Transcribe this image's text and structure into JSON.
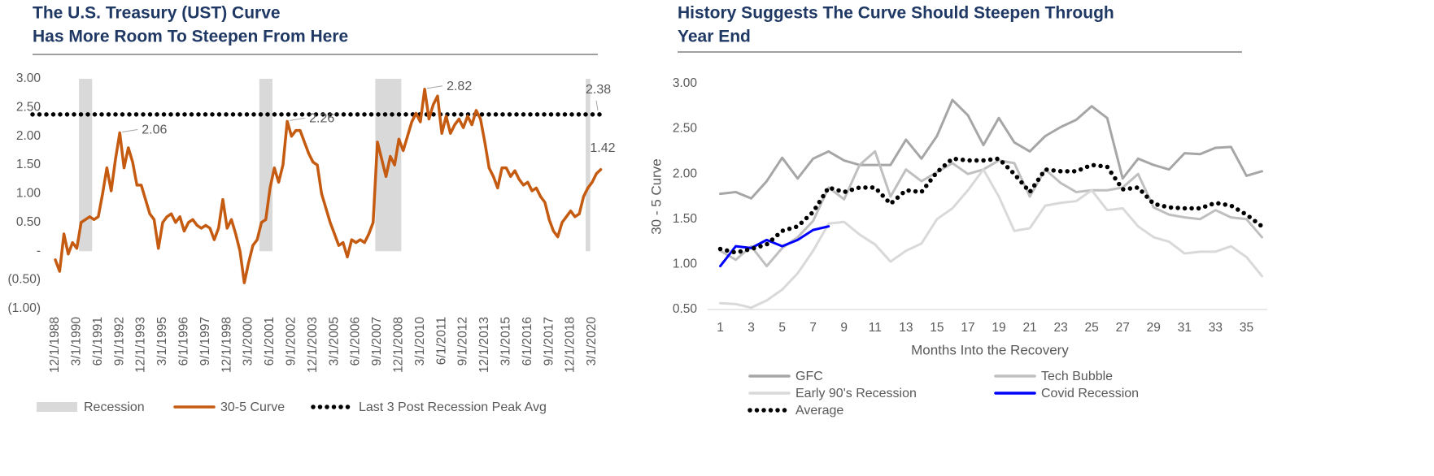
{
  "chart_data": [
    {
      "type": "line",
      "title": [
        "The U.S. Treasury (UST) Curve",
        "Has More Room To Steepen From Here"
      ],
      "categories": [
        "12/1/1988",
        null,
        null,
        null,
        null,
        "3/1/1990",
        null,
        null,
        null,
        null,
        "6/1/1991",
        null,
        null,
        null,
        null,
        "9/1/1992",
        null,
        null,
        null,
        null,
        "12/1/1993",
        null,
        null,
        null,
        null,
        "3/1/1995",
        null,
        null,
        null,
        null,
        "6/1/1996",
        null,
        null,
        null,
        null,
        "9/1/1997",
        null,
        null,
        null,
        null,
        "12/1/1998",
        null,
        null,
        null,
        null,
        "3/1/2000",
        null,
        null,
        null,
        null,
        "6/1/2001",
        null,
        null,
        null,
        null,
        "9/1/2002",
        null,
        null,
        null,
        null,
        "12/1/2003",
        null,
        null,
        null,
        null,
        "3/1/2005",
        null,
        null,
        null,
        null,
        "6/1/2006",
        null,
        null,
        null,
        null,
        "9/1/2007",
        null,
        null,
        null,
        null,
        "12/1/2008",
        null,
        null,
        null,
        null,
        "3/1/2010",
        null,
        null,
        null,
        null,
        "6/1/2011",
        null,
        null,
        null,
        null,
        "9/1/2012",
        null,
        null,
        null,
        null,
        "12/1/2013",
        null,
        null,
        null,
        null,
        "3/1/2015",
        null,
        null,
        null,
        null,
        "6/1/2016",
        null,
        null,
        null,
        null,
        "9/1/2017",
        null,
        null,
        null,
        null,
        "12/1/2018",
        null,
        null,
        null,
        null,
        "3/1/2020",
        null,
        null
      ],
      "series": [
        {
          "name": "Recession",
          "type": "bar",
          "color": "#d9d9d9",
          "values": [
            null,
            null,
            null,
            null,
            null,
            null,
            3,
            3,
            3,
            null,
            null,
            null,
            null,
            null,
            null,
            null,
            null,
            null,
            null,
            null,
            null,
            null,
            null,
            null,
            null,
            null,
            null,
            null,
            null,
            null,
            null,
            null,
            null,
            null,
            null,
            null,
            null,
            null,
            null,
            null,
            null,
            null,
            null,
            null,
            null,
            null,
            null,
            null,
            3,
            3,
            3,
            null,
            null,
            null,
            null,
            null,
            null,
            null,
            null,
            null,
            null,
            null,
            null,
            null,
            null,
            null,
            null,
            null,
            null,
            null,
            null,
            null,
            null,
            null,
            null,
            3,
            3,
            3,
            3,
            3,
            3,
            null,
            null,
            null,
            null,
            null,
            null,
            null,
            null,
            null,
            null,
            null,
            null,
            null,
            null,
            null,
            null,
            null,
            null,
            null,
            null,
            null,
            null,
            null,
            null,
            null,
            null,
            null,
            null,
            null,
            null,
            null,
            null,
            null,
            null,
            null,
            null,
            null,
            null,
            null,
            null,
            null,
            null,
            null,
            3,
            null,
            null,
            null
          ]
        },
        {
          "name": "30-5 Curve",
          "type": "line",
          "color": "#c55a11",
          "values": [
            -0.15,
            -0.35,
            0.3,
            -0.05,
            0.15,
            0.05,
            0.5,
            0.55,
            0.6,
            0.55,
            0.6,
            1.0,
            1.45,
            1.05,
            1.6,
            2.06,
            1.45,
            1.8,
            1.55,
            1.15,
            1.15,
            0.9,
            0.65,
            0.55,
            0.05,
            0.5,
            0.6,
            0.65,
            0.5,
            0.6,
            0.35,
            0.5,
            0.55,
            0.45,
            0.4,
            0.45,
            0.4,
            0.2,
            0.4,
            0.9,
            0.4,
            0.55,
            0.3,
            0.0,
            -0.55,
            -0.2,
            0.1,
            0.2,
            0.5,
            0.55,
            1.1,
            1.45,
            1.2,
            1.5,
            2.26,
            2.0,
            2.1,
            2.1,
            1.9,
            1.7,
            1.55,
            1.5,
            1.0,
            0.75,
            0.5,
            0.3,
            0.1,
            0.15,
            -0.1,
            0.2,
            0.15,
            0.2,
            0.15,
            0.3,
            0.5,
            1.9,
            1.6,
            1.3,
            1.65,
            1.5,
            1.95,
            1.75,
            2.0,
            2.25,
            2.4,
            2.25,
            2.82,
            2.3,
            2.55,
            2.7,
            2.05,
            2.35,
            2.05,
            2.2,
            2.3,
            2.15,
            2.35,
            2.2,
            2.45,
            2.3,
            1.9,
            1.45,
            1.3,
            1.1,
            1.45,
            1.45,
            1.3,
            1.4,
            1.25,
            1.15,
            1.2,
            1.05,
            1.1,
            0.95,
            0.85,
            0.55,
            0.35,
            0.25,
            0.5,
            0.6,
            0.7,
            0.6,
            0.65,
            0.95,
            1.1,
            1.2,
            1.35,
            1.42
          ],
          "value_labels": [
            null,
            null,
            null,
            null,
            null,
            null,
            null,
            null,
            null,
            null,
            null,
            null,
            null,
            null,
            null,
            "2.06",
            null,
            null,
            null,
            null,
            null,
            null,
            null,
            null,
            null,
            null,
            null,
            null,
            null,
            null,
            null,
            null,
            null,
            null,
            null,
            null,
            null,
            null,
            null,
            null,
            null,
            null,
            null,
            null,
            null,
            null,
            null,
            null,
            null,
            null,
            null,
            null,
            null,
            null,
            "2.26",
            null,
            null,
            null,
            null,
            null,
            null,
            null,
            null,
            null,
            null,
            null,
            null,
            null,
            null,
            null,
            null,
            null,
            null,
            null,
            null,
            null,
            null,
            null,
            null,
            null,
            null,
            null,
            null,
            null,
            null,
            null,
            "2.82",
            null,
            null,
            null,
            null,
            null,
            null,
            null,
            null,
            null,
            null,
            null,
            null,
            null,
            null,
            null,
            null,
            null,
            null,
            null,
            null,
            null,
            null,
            null,
            null,
            null,
            null,
            null,
            null,
            null,
            null,
            null,
            null,
            null,
            null,
            null,
            null,
            null,
            null,
            null,
            null,
            "1.42"
          ]
        }
      ],
      "reference_line": {
        "name": "Last 3 Post Recession Peak Avg",
        "value": 2.38,
        "color": "#000000",
        "line_style": "dotted"
      },
      "ylim": [
        -1,
        3
      ],
      "yticks": [
        {
          "value": -1,
          "label": "(1.00)"
        },
        {
          "value": -0.5,
          "label": "(0.50)"
        },
        {
          "value": 0,
          "label": "-"
        },
        {
          "value": 0.5,
          "label": "0.50"
        },
        {
          "value": 1,
          "label": "1.00"
        },
        {
          "value": 1.5,
          "label": "1.50"
        },
        {
          "value": 2,
          "label": "2.00"
        },
        {
          "value": 2.5,
          "label": "2.50"
        },
        {
          "value": 3,
          "label": "3.00"
        }
      ],
      "grid": false,
      "legend": "bottom"
    },
    {
      "type": "line",
      "title": [
        "History Suggests The Curve Should Steepen Through",
        "Year End"
      ],
      "y_label": "30 - 5 Curve",
      "x_label": "Months Into the Recovery",
      "categories": [
        "1",
        null,
        "3",
        null,
        "5",
        null,
        "7",
        null,
        "9",
        null,
        "11",
        null,
        "13",
        null,
        "15",
        null,
        "17",
        null,
        "19",
        null,
        "21",
        null,
        "23",
        null,
        "25",
        null,
        "27",
        null,
        "29",
        null,
        "31",
        null,
        "33",
        null,
        "35",
        null
      ],
      "series": [
        {
          "name": "GFC",
          "color": "#a6a6a6",
          "values": [
            1.78,
            1.8,
            1.73,
            1.92,
            2.18,
            1.95,
            2.17,
            2.25,
            2.15,
            2.1,
            2.1,
            2.1,
            2.38,
            2.17,
            2.42,
            2.82,
            2.65,
            2.32,
            2.62,
            2.35,
            2.25,
            2.42,
            2.52,
            2.6,
            2.75,
            2.62,
            1.95,
            2.17,
            2.1,
            2.05,
            2.23,
            2.22,
            2.29,
            2.3,
            1.98,
            2.03
          ]
        },
        {
          "name": "Tech Bubble",
          "color": "#bfbfbf",
          "values": [
            1.15,
            1.05,
            1.2,
            0.98,
            1.18,
            1.3,
            1.48,
            1.85,
            1.72,
            2.1,
            2.25,
            1.75,
            2.05,
            1.92,
            2.02,
            2.12,
            2.0,
            2.05,
            2.15,
            2.12,
            1.75,
            2.05,
            1.9,
            1.8,
            1.82,
            1.82,
            1.85,
            2.0,
            1.63,
            1.55,
            1.52,
            1.5,
            1.6,
            1.52,
            1.5,
            1.3
          ]
        },
        {
          "name": "Early 90's Recession",
          "color": "#d9d9d9",
          "values": [
            0.57,
            0.56,
            0.52,
            0.6,
            0.72,
            0.9,
            1.15,
            1.45,
            1.47,
            1.33,
            1.22,
            1.03,
            1.15,
            1.23,
            1.5,
            1.62,
            1.82,
            2.05,
            1.75,
            1.37,
            1.4,
            1.65,
            1.68,
            1.7,
            1.82,
            1.6,
            1.62,
            1.42,
            1.3,
            1.25,
            1.12,
            1.14,
            1.14,
            1.2,
            1.08,
            0.87
          ]
        },
        {
          "name": "Covid Recession",
          "color": "#0000ff",
          "values": [
            0.98,
            1.2,
            1.18,
            1.27,
            1.2,
            1.27,
            1.38,
            1.42,
            null,
            null,
            null,
            null,
            null,
            null,
            null,
            null,
            null,
            null,
            null,
            null,
            null,
            null,
            null,
            null,
            null,
            null,
            null,
            null,
            null,
            null,
            null,
            null,
            null,
            null,
            null,
            null
          ]
        },
        {
          "name": "Average",
          "color": "#000000",
          "line_style": "dotted",
          "values": [
            1.17,
            1.13,
            1.17,
            1.22,
            1.37,
            1.42,
            1.58,
            1.85,
            1.8,
            1.85,
            1.85,
            1.67,
            1.82,
            1.8,
            2.02,
            2.17,
            2.15,
            2.15,
            2.17,
            2.0,
            1.8,
            2.05,
            2.03,
            2.03,
            2.1,
            2.08,
            1.83,
            1.85,
            1.67,
            1.63,
            1.62,
            1.62,
            1.68,
            1.65,
            1.55,
            1.42
          ]
        }
      ],
      "ylim": [
        0.5,
        3
      ],
      "yticks": [
        {
          "value": 0.5,
          "label": "0.50"
        },
        {
          "value": 1,
          "label": "1.00"
        },
        {
          "value": 1.5,
          "label": "1.50"
        },
        {
          "value": 2,
          "label": "2.00"
        },
        {
          "value": 2.5,
          "label": "2.50"
        },
        {
          "value": 3,
          "label": "3.00"
        }
      ],
      "grid": false,
      "legend": "bottom"
    }
  ]
}
